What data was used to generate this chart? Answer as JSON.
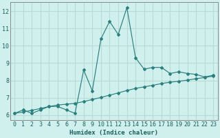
{
  "title": "",
  "xlabel": "Humidex (Indice chaleur)",
  "background_color": "#cff0ec",
  "grid_color": "#b8dbd8",
  "line_color": "#2a7f7f",
  "x_line1": [
    0,
    1,
    2,
    3,
    4,
    5,
    6,
    7,
    8,
    9,
    10,
    11,
    12,
    13,
    14,
    15,
    16,
    17,
    18,
    19,
    20,
    21,
    22,
    23
  ],
  "y_line1": [
    6.1,
    6.3,
    6.1,
    6.3,
    6.5,
    6.5,
    6.3,
    6.1,
    8.6,
    7.4,
    10.4,
    11.4,
    10.65,
    12.2,
    9.3,
    8.65,
    8.75,
    8.75,
    8.4,
    8.5,
    8.4,
    8.35,
    8.2,
    8.3
  ],
  "x_line2": [
    0,
    1,
    2,
    3,
    4,
    5,
    6,
    7,
    8,
    9,
    10,
    11,
    12,
    13,
    14,
    15,
    16,
    17,
    18,
    19,
    20,
    21,
    22,
    23
  ],
  "y_line2": [
    6.1,
    6.18,
    6.28,
    6.38,
    6.5,
    6.58,
    6.63,
    6.68,
    6.78,
    6.9,
    7.02,
    7.15,
    7.28,
    7.42,
    7.54,
    7.63,
    7.72,
    7.82,
    7.9,
    7.95,
    8.02,
    8.1,
    8.17,
    8.25
  ],
  "xlim": [
    -0.5,
    23.5
  ],
  "ylim": [
    5.7,
    12.5
  ],
  "yticks": [
    6,
    7,
    8,
    9,
    10,
    11,
    12
  ],
  "xticks": [
    0,
    1,
    2,
    3,
    4,
    5,
    6,
    7,
    8,
    9,
    10,
    11,
    12,
    13,
    14,
    15,
    16,
    17,
    18,
    19,
    20,
    21,
    22,
    23
  ],
  "xlabel_fontsize": 6.5,
  "tick_fontsize": 6.0
}
